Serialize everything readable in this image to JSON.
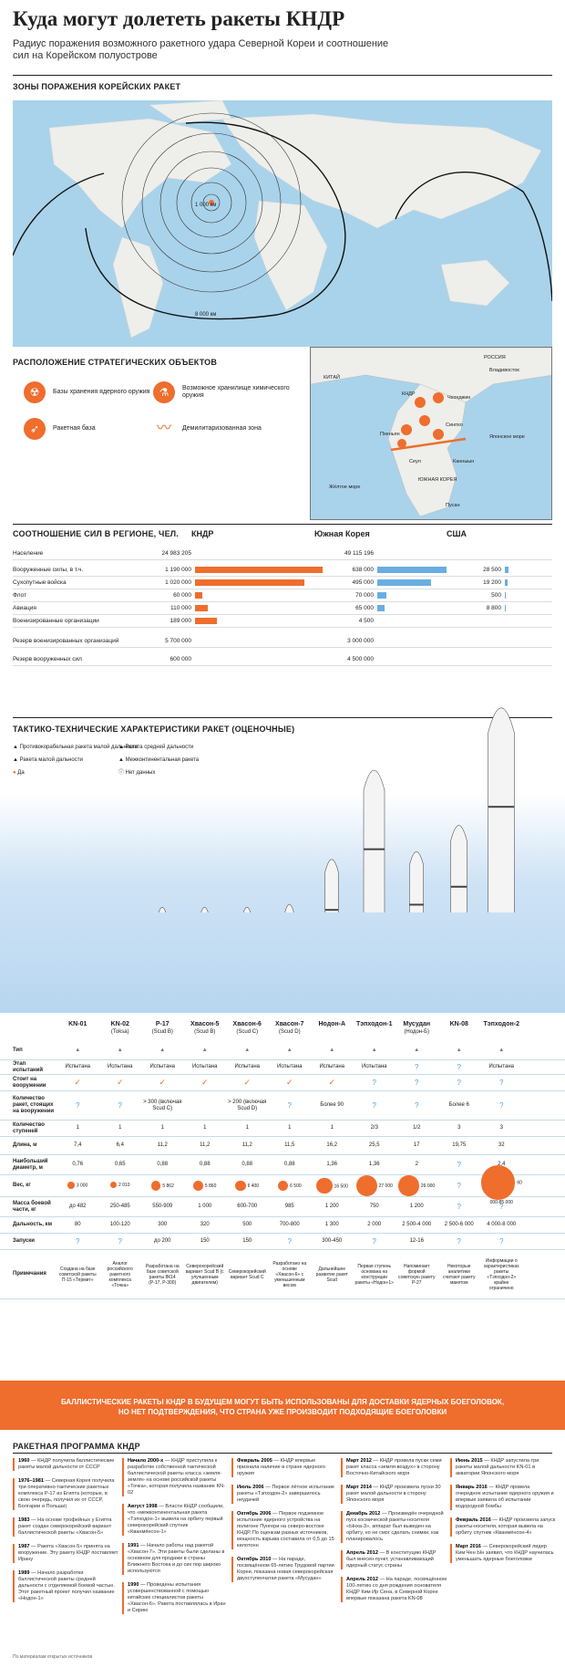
{
  "title": "Куда могут долететь ракеты КНДР",
  "subtitle": "Радиус поражения возможного ракетного удара Северной Кореи и соотношение сил на Корейском полуострове",
  "sections": {
    "zones": "ЗОНЫ ПОРАЖЕНИЯ КОРЕЙСКИХ РАКЕТ",
    "objects": "РАСПОЛОЖЕНИЕ СТРАТЕГИЧЕСКИХ ОБЪЕКТОВ",
    "forces": "СООТНОШЕНИЕ СИЛ В РЕГИОНЕ, ЧЕЛ.",
    "ttx": "ТАКТИКО-ТЕХНИЧЕСКИЕ ХАРАКТЕРИСТИКИ РАКЕТ (ОЦЕНОЧНЫЕ)",
    "program": "РАКЕТНАЯ ПРОГРАММА КНДР"
  },
  "map": {
    "ring_1000": "1 000 км",
    "ring_8000": "8 000 км"
  },
  "inset": {
    "labels": [
      "РОССИЯ",
      "Владивосток",
      "КИТАЙ",
      "КНДР",
      "Чхонджин",
      "Синпхо",
      "Пхеньян",
      "Японское море",
      "Жёлтое море",
      "Сеул",
      "ЮЖНАЯ КОРЕЯ",
      "Канныын",
      "Пусан"
    ]
  },
  "legend": {
    "nuclear": "Базы хранения ядерного оружия",
    "chemical": "Возможное хранилище химического оружия",
    "missile": "Ракетная база",
    "dmz": "Демилитаризованная зона"
  },
  "forces": {
    "headers": {
      "kndr": "КНДР",
      "korea": "Южная Корея",
      "usa": "США"
    },
    "rows": [
      {
        "label": "Население",
        "v1": "24 983 205",
        "p1": 0,
        "v2": "49 115 196",
        "p2": 0,
        "v3": "",
        "p3": 0
      },
      {
        "label": "Вооруженные силы, в т.ч.",
        "v1": "1 190 000",
        "p1": 100,
        "v2": "638 000",
        "p2": 54,
        "v3": "28 500",
        "p3": 3
      },
      {
        "label": "Сухопутные войска",
        "v1": "1 020 000",
        "p1": 86,
        "v2": "495 000",
        "p2": 42,
        "v3": "19 200",
        "p3": 2
      },
      {
        "label": "Флот",
        "v1": "60 000",
        "p1": 6,
        "v2": "70 000",
        "p2": 7,
        "v3": "500",
        "p3": 0.5
      },
      {
        "label": "Авиация",
        "v1": "110 000",
        "p1": 10,
        "v2": "65 000",
        "p2": 6,
        "v3": "8 800",
        "p3": 1
      },
      {
        "label": "Военизированные организации",
        "v1": "189 000",
        "p1": 17,
        "v2": "4 500",
        "p2": 0,
        "v3": "",
        "p3": 0
      },
      {
        "label": "Резерв военизированных организаций",
        "v1": "5 700 000",
        "p1": 0,
        "v2": "3 000 000",
        "p2": 0,
        "v3": "",
        "p3": 0
      },
      {
        "label": "Резерв вооруженных сил",
        "v1": "600 000",
        "p1": 0,
        "v2": "4 500 000",
        "p2": 0,
        "v3": "",
        "p3": 0
      }
    ]
  },
  "ttx_legend": {
    "srbm": "Противокорабельная ракета малой дальности",
    "mrbm": "Ракета средней дальности",
    "sr": "Ракета малой дальности",
    "icbm": "Межконтинентальная ракета",
    "yes": "Да",
    "nodata": "Нет данных"
  },
  "missiles": {
    "names": [
      "KN-01",
      "KN-02",
      "Р-17",
      "Хвасон-5",
      "Хвасон-6",
      "Хвасон-7",
      "Нодон-А",
      "Тэпходон-1",
      "Мусудан",
      "KN-08",
      "Тэпходон-2"
    ],
    "alt": [
      "",
      "(Toksa)",
      "(Scud B)",
      "(Scud B)",
      "(Scud C)",
      "(Scud D)",
      "",
      "",
      "(Нодон-Б)",
      "",
      ""
    ],
    "rows": [
      {
        "label": "Тип",
        "cells": [
          "▲",
          "▲",
          "▲",
          "▲",
          "▲",
          "▲",
          "▲",
          "▲",
          "▲",
          "▲",
          "▲"
        ]
      },
      {
        "label": "Этап испытаний",
        "cells": [
          "Испытана",
          "Испытана",
          "Испытана",
          "Испытана",
          "Испытана",
          "Испытана",
          "Испытана",
          "Испытана",
          "?",
          "?",
          "Испытана"
        ]
      },
      {
        "label": "Стоит на вооружении",
        "cells": [
          "✓",
          "✓",
          "✓",
          "✓",
          "✓",
          "✓",
          "✓",
          "?",
          "?",
          "?",
          "?"
        ]
      },
      {
        "label": "Количество ракет, стоящих на вооружении",
        "cells": [
          "?",
          "?",
          "> 300 (включая Scud C)",
          "",
          "> 200 (включая Scud D)",
          "?",
          "Более 90",
          "?",
          "?",
          "Более 6",
          "?"
        ]
      },
      {
        "label": "Количество ступеней",
        "cells": [
          "1",
          "1",
          "1",
          "1",
          "1",
          "1",
          "1",
          "2/3",
          "1/2",
          "3",
          "3"
        ]
      },
      {
        "label": "Длина, м",
        "cells": [
          "7,4",
          "6,4",
          "11,2",
          "11,2",
          "11,2",
          "11,5",
          "16,2",
          "25,5",
          "17",
          "19,75",
          "32"
        ]
      },
      {
        "label": "Наибольший диаметр, м",
        "cells": [
          "0,76",
          "0,65",
          "0,88",
          "0,88",
          "0,88",
          "0,88",
          "1,36",
          "1,36",
          "2",
          "?",
          "2,4"
        ]
      },
      {
        "label": "Вес, кг",
        "cells": [
          "3 000",
          "2 010",
          "5 862",
          "5 860",
          "6 400",
          "6 500",
          "16 500",
          "27 000",
          "26 000",
          "?",
          "60 000-85 000"
        ]
      },
      {
        "label": "Масса боевой части, кг",
        "cells": [
          "до 482",
          "250-485",
          "550-909",
          "1 000",
          "600-700",
          "985",
          "1 200",
          "750",
          "1 200",
          "?",
          "?"
        ]
      },
      {
        "label": "Дальность, км",
        "cells": [
          "80",
          "100-120",
          "300",
          "320",
          "500",
          "700-800",
          "1 300",
          "2 000",
          "2 500-4 000",
          "2 500-6 000",
          "4 000-8 000"
        ]
      },
      {
        "label": "Запуски",
        "cells": [
          "?",
          "?",
          "до 200",
          "150",
          "150",
          "?",
          "300-450",
          "?",
          "12-16",
          "?",
          "?"
        ]
      },
      {
        "label": "Примечания",
        "cells": [
          "Создана на базе советской ракеты П-15 «Термит»",
          "Аналог российского ракетного комплекса «Точка»",
          "Разработана на базе советской ракеты 8К14 (Р-17, Р-300)",
          "Северокорейский вариант Scud B (с улучшенным двигателем)",
          "Северокорейский вариант Scud C",
          "Разработано на основе «Хвасон-6» с уменьшенным весом",
          "Дальнейшее развитие ракет Scud",
          "Первая ступень основана на конструкции ракеты «Нодон-1»",
          "Напоминает формой советскую ракету Р-27",
          "Некоторые аналитики считают ракету макетом",
          "Информации о характеристиках ракеты «Тэпходон-2» крайне ограничено"
        ]
      }
    ],
    "weights": [
      3000,
      2010,
      5862,
      5860,
      6400,
      6500,
      16500,
      27000,
      26000,
      0,
      72500
    ],
    "lengths": [
      7.4,
      6.4,
      11.2,
      11.2,
      11.2,
      11.5,
      16.2,
      25.5,
      17,
      19.75,
      32
    ]
  },
  "banner": "БАЛЛИСТИЧЕСКИЕ РАКЕТЫ КНДР В БУДУЩЕМ МОГУТ БЫТЬ ИСПОЛЬЗОВАНЫ ДЛЯ ДОСТАВКИ ЯДЕРНЫХ БОЕГОЛОВОК, НО НЕТ ПОДТВЕРЖДЕНИЯ, ЧТО СТРАНА УЖЕ ПРОИЗВОДИТ ПОДХОДЯЩИЕ БОЕГОЛОВКИ",
  "timeline": [
    [
      {
        "date": "1960",
        "text": "— КНДР получила баллистические ракеты малой дальности от СССР"
      },
      {
        "date": "1976–1981",
        "text": "— Северная Корея получила три оперативно-тактические ракетных комплекса Р-17 из Египта (которые, в свою очередь, получил их от СССР, Болгарии и Польши)"
      },
      {
        "date": "1983",
        "text": "— На основе трофейных у Египта ракет создан северокорейский вариант баллистической ракеты «Хвасон-5»"
      },
      {
        "date": "1987",
        "text": "— Ракета «Хвасон-5» принята на вооружение. Эту ракету КНДР поставляет Ирану"
      },
      {
        "date": "1989",
        "text": "— Начало разработки баллистической ракеты средней дальности с отделяемой боевой частью. Этот ракетный проект получил название «Нодон-1»"
      }
    ],
    [
      {
        "date": "Начало 2000-х",
        "text": "— КНДР приступила к разработке собственной тактической баллистической ракеты класса «земля-земля» на основе российской ракеты «Точка», которая получила название KN-02"
      },
      {
        "date": "Август 1998",
        "text": "— Власти КНДР сообщили, что «межконтинентальная ракета «Тэпходон-1» вывела на орбиту первый северокорейский спутник «Кванмёнсон-1»"
      },
      {
        "date": "1991",
        "text": "— Начало работы над ракетой «Хвасон-7». Эти ракеты были сделаны в основном для продажи в страны Ближнего Востока и до сих пор широко используются"
      },
      {
        "date": "1990",
        "text": "— Проведены испытания усовершенствованной с помощью китайских специалистов ракеты «Хвасон-6». Ракета поставлялась в Иран и Сирию"
      }
    ],
    [
      {
        "date": "Февраль 2005",
        "text": "— КНДР впервые признала наличие в стране ядерного оружия"
      },
      {
        "date": "Июль 2006",
        "text": "— Первое лётное испытание ракеты «Тэпходон-2» завершилось неудачей"
      },
      {
        "date": "Октябрь 2006",
        "text": "— Первое подземное испытание ядерного устройства на полигоне Пунгери на северо-востоке КНДР. По оценкам разных источников, мощность взрыва составила от 0,5 до 15 килотонн"
      },
      {
        "date": "Октябрь 2010",
        "text": "— На параде, посвящённом 65-летию Трудовой партии Кореи, показана новая северокорейская двухступенчатая ракета «Мусудан»"
      }
    ],
    [
      {
        "date": "Март 2012",
        "text": "— КНДР провела пуски семи ракет класса «земля-воздух» в сторону Восточно-Китайского моря"
      },
      {
        "date": "Март 2014",
        "text": "— КНДР произвела пуски 30 ракет малой дальности в сторону Японского моря"
      },
      {
        "date": "Декабрь 2012",
        "text": "— Произведён очередной пуск космической ракеты-носителя «Ынха-3», аппарат был выведен на орбиту, но не смог сделать снимки, как планировалось"
      },
      {
        "date": "Апрель 2012",
        "text": "— В конституцию КНДР был внесен пункт, устанавливающий ядерный статус страны"
      },
      {
        "date": "Апрель 2012",
        "text": "— На параде, посвящённом 100-летию со дня рождения основателя КНДР Ким Ир Сена, в Северной Корее впервые показана ракета KN-08"
      }
    ],
    [
      {
        "date": "Июнь 2015",
        "text": "— КНДР запустила три ракеты малой дальности KN-01 в акватории Японского моря"
      },
      {
        "date": "Январь 2016",
        "text": "— КНДР провела очередное испытание ядерного оружия и впервые заявила об испытании водородной бомбы"
      },
      {
        "date": "Февраль 2016",
        "text": "— КНДР произвела запуск ракеты-носителя, которая вывела на орбиту спутник «Кванмёнсон-4»"
      },
      {
        "date": "Март 2016",
        "text": "— Северокорейский лидер Ким Чен Ын заявил, что КНДР научилась уменьшать ядерные боеголовки"
      }
    ]
  ],
  "credit": "По материалам открытых источников"
}
